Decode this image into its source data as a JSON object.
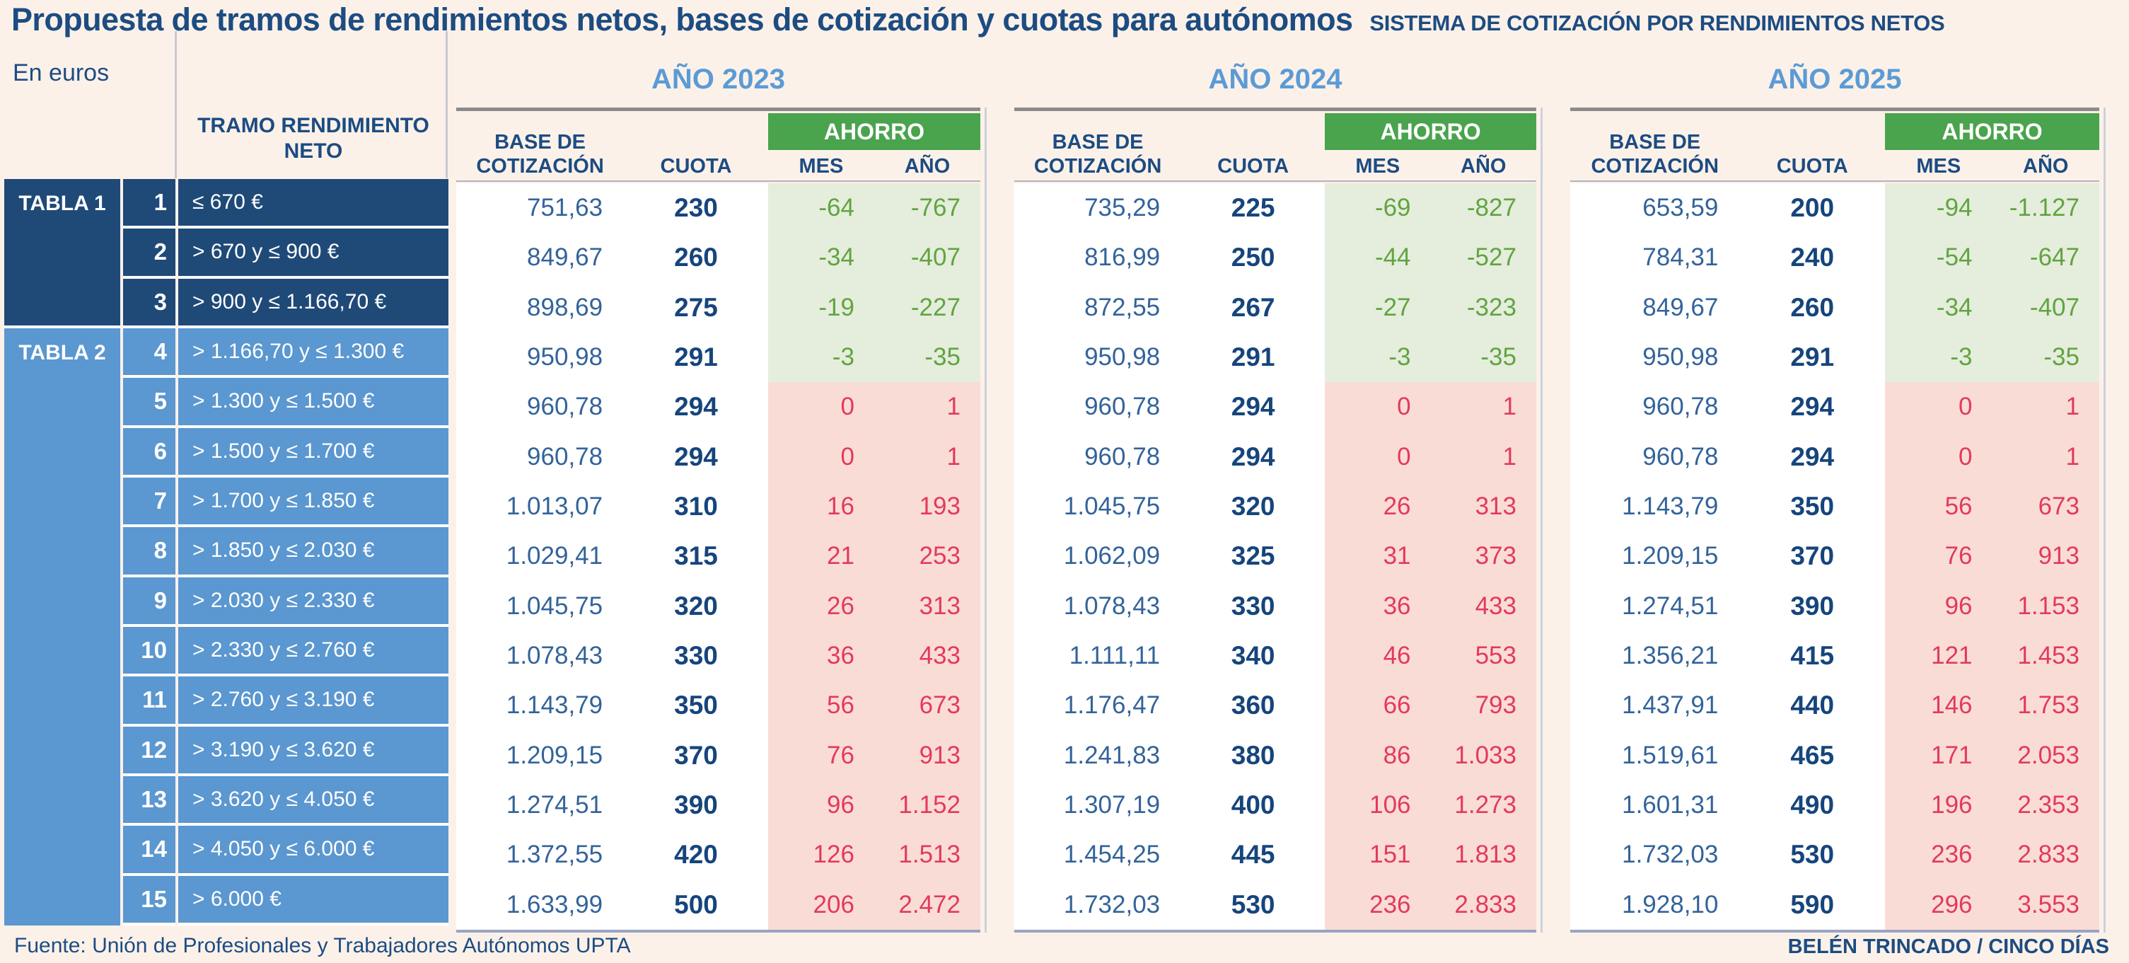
{
  "title": "Propuesta de tramos de rendimientos netos, bases de cotización y cuotas para autónomos",
  "subtitle": "SISTEMA DE COTIZACIÓN POR RENDIMIENTOS NETOS",
  "unit_label": "En euros",
  "left_table": {
    "tabla1_label": "TABLA 1",
    "tabla2_label": "TABLA 2",
    "tramo_header": "TRAMO RENDIMIENTO NETO"
  },
  "column_headers": {
    "base": "BASE DE COTIZACIÓN",
    "cuota": "CUOTA",
    "ahorro": "AHORRO",
    "mes": "MES",
    "anio": "AÑO"
  },
  "footer": {
    "source": "Fuente: Unión de Profesionales y Trabajadores Autónomos UPTA",
    "credit": "BELÉN TRINCADO / CINCO DÍAS"
  },
  "colors": {
    "background": "#fcf1e9",
    "navy": "#1c4c82",
    "year_blue": "#5b9bd5",
    "tabla1_bg": "#1f4a78",
    "tabla2_bg": "#5b97d0",
    "ahorro_green": "#4aa34d",
    "saving_green_text": "#61a441",
    "saving_green_bg": "#e5eddc",
    "saving_red_text": "#e23a5c",
    "saving_red_bg": "#fadcd6"
  },
  "chart_data": {
    "type": "table",
    "title": "Propuesta de tramos de rendimientos netos, bases de cotización y cuotas para autónomos",
    "unit": "euros",
    "years": [
      "AÑO 2023",
      "AÑO 2024",
      "AÑO 2025"
    ],
    "groups": [
      {
        "label": "TABLA 1",
        "rows": "1-3"
      },
      {
        "label": "TABLA 2",
        "rows": "4-15"
      }
    ],
    "columns_per_year": [
      "BASE DE COTIZACIÓN",
      "CUOTA",
      "AHORRO MES",
      "AHORRO AÑO"
    ],
    "rows": [
      {
        "n": "1",
        "tramo": "≤ 670 €",
        "y2023": {
          "base": "751,63",
          "cuota": "230",
          "mes": "-64",
          "anio": "-767"
        },
        "y2024": {
          "base": "735,29",
          "cuota": "225",
          "mes": "-69",
          "anio": "-827"
        },
        "y2025": {
          "base": "653,59",
          "cuota": "200",
          "mes": "-94",
          "anio": "-1.127"
        }
      },
      {
        "n": "2",
        "tramo": "> 670 y ≤ 900 €",
        "y2023": {
          "base": "849,67",
          "cuota": "260",
          "mes": "-34",
          "anio": "-407"
        },
        "y2024": {
          "base": "816,99",
          "cuota": "250",
          "mes": "-44",
          "anio": "-527"
        },
        "y2025": {
          "base": "784,31",
          "cuota": "240",
          "mes": "-54",
          "anio": "-647"
        }
      },
      {
        "n": "3",
        "tramo": "> 900 y ≤ 1.166,70 €",
        "y2023": {
          "base": "898,69",
          "cuota": "275",
          "mes": "-19",
          "anio": "-227"
        },
        "y2024": {
          "base": "872,55",
          "cuota": "267",
          "mes": "-27",
          "anio": "-323"
        },
        "y2025": {
          "base": "849,67",
          "cuota": "260",
          "mes": "-34",
          "anio": "-407"
        }
      },
      {
        "n": "4",
        "tramo": "> 1.166,70 y ≤ 1.300 €",
        "y2023": {
          "base": "950,98",
          "cuota": "291",
          "mes": "-3",
          "anio": "-35"
        },
        "y2024": {
          "base": "950,98",
          "cuota": "291",
          "mes": "-3",
          "anio": "-35"
        },
        "y2025": {
          "base": "950,98",
          "cuota": "291",
          "mes": "-3",
          "anio": "-35"
        }
      },
      {
        "n": "5",
        "tramo": "> 1.300 y ≤ 1.500 €",
        "y2023": {
          "base": "960,78",
          "cuota": "294",
          "mes": "0",
          "anio": "1"
        },
        "y2024": {
          "base": "960,78",
          "cuota": "294",
          "mes": "0",
          "anio": "1"
        },
        "y2025": {
          "base": "960,78",
          "cuota": "294",
          "mes": "0",
          "anio": "1"
        }
      },
      {
        "n": "6",
        "tramo": "> 1.500 y ≤ 1.700 €",
        "y2023": {
          "base": "960,78",
          "cuota": "294",
          "mes": "0",
          "anio": "1"
        },
        "y2024": {
          "base": "960,78",
          "cuota": "294",
          "mes": "0",
          "anio": "1"
        },
        "y2025": {
          "base": "960,78",
          "cuota": "294",
          "mes": "0",
          "anio": "1"
        }
      },
      {
        "n": "7",
        "tramo": "> 1.700 y ≤ 1.850 €",
        "y2023": {
          "base": "1.013,07",
          "cuota": "310",
          "mes": "16",
          "anio": "193"
        },
        "y2024": {
          "base": "1.045,75",
          "cuota": "320",
          "mes": "26",
          "anio": "313"
        },
        "y2025": {
          "base": "1.143,79",
          "cuota": "350",
          "mes": "56",
          "anio": "673"
        }
      },
      {
        "n": "8",
        "tramo": "> 1.850 y ≤ 2.030 €",
        "y2023": {
          "base": "1.029,41",
          "cuota": "315",
          "mes": "21",
          "anio": "253"
        },
        "y2024": {
          "base": "1.062,09",
          "cuota": "325",
          "mes": "31",
          "anio": "373"
        },
        "y2025": {
          "base": "1.209,15",
          "cuota": "370",
          "mes": "76",
          "anio": "913"
        }
      },
      {
        "n": "9",
        "tramo": "> 2.030 y ≤ 2.330 €",
        "y2023": {
          "base": "1.045,75",
          "cuota": "320",
          "mes": "26",
          "anio": "313"
        },
        "y2024": {
          "base": "1.078,43",
          "cuota": "330",
          "mes": "36",
          "anio": "433"
        },
        "y2025": {
          "base": "1.274,51",
          "cuota": "390",
          "mes": "96",
          "anio": "1.153"
        }
      },
      {
        "n": "10",
        "tramo": "> 2.330 y ≤ 2.760 €",
        "y2023": {
          "base": "1.078,43",
          "cuota": "330",
          "mes": "36",
          "anio": "433"
        },
        "y2024": {
          "base": "1.111,11",
          "cuota": "340",
          "mes": "46",
          "anio": "553"
        },
        "y2025": {
          "base": "1.356,21",
          "cuota": "415",
          "mes": "121",
          "anio": "1.453"
        }
      },
      {
        "n": "11",
        "tramo": "> 2.760 y ≤ 3.190 €",
        "y2023": {
          "base": "1.143,79",
          "cuota": "350",
          "mes": "56",
          "anio": "673"
        },
        "y2024": {
          "base": "1.176,47",
          "cuota": "360",
          "mes": "66",
          "anio": "793"
        },
        "y2025": {
          "base": "1.437,91",
          "cuota": "440",
          "mes": "146",
          "anio": "1.753"
        }
      },
      {
        "n": "12",
        "tramo": "> 3.190 y ≤ 3.620 €",
        "y2023": {
          "base": "1.209,15",
          "cuota": "370",
          "mes": "76",
          "anio": "913"
        },
        "y2024": {
          "base": "1.241,83",
          "cuota": "380",
          "mes": "86",
          "anio": "1.033"
        },
        "y2025": {
          "base": "1.519,61",
          "cuota": "465",
          "mes": "171",
          "anio": "2.053"
        }
      },
      {
        "n": "13",
        "tramo": "> 3.620 y ≤ 4.050 €",
        "y2023": {
          "base": "1.274,51",
          "cuota": "390",
          "mes": "96",
          "anio": "1.152"
        },
        "y2024": {
          "base": "1.307,19",
          "cuota": "400",
          "mes": "106",
          "anio": "1.273"
        },
        "y2025": {
          "base": "1.601,31",
          "cuota": "490",
          "mes": "196",
          "anio": "2.353"
        }
      },
      {
        "n": "14",
        "tramo": "> 4.050 y ≤ 6.000 €",
        "y2023": {
          "base": "1.372,55",
          "cuota": "420",
          "mes": "126",
          "anio": "1.513"
        },
        "y2024": {
          "base": "1.454,25",
          "cuota": "445",
          "mes": "151",
          "anio": "1.813"
        },
        "y2025": {
          "base": "1.732,03",
          "cuota": "530",
          "mes": "236",
          "anio": "2.833"
        }
      },
      {
        "n": "15",
        "tramo": "> 6.000 €",
        "y2023": {
          "base": "1.633,99",
          "cuota": "500",
          "mes": "206",
          "anio": "2.472"
        },
        "y2024": {
          "base": "1.732,03",
          "cuota": "530",
          "mes": "236",
          "anio": "2.833"
        },
        "y2025": {
          "base": "1.928,10",
          "cuota": "590",
          "mes": "296",
          "anio": "3.553"
        }
      }
    ]
  }
}
